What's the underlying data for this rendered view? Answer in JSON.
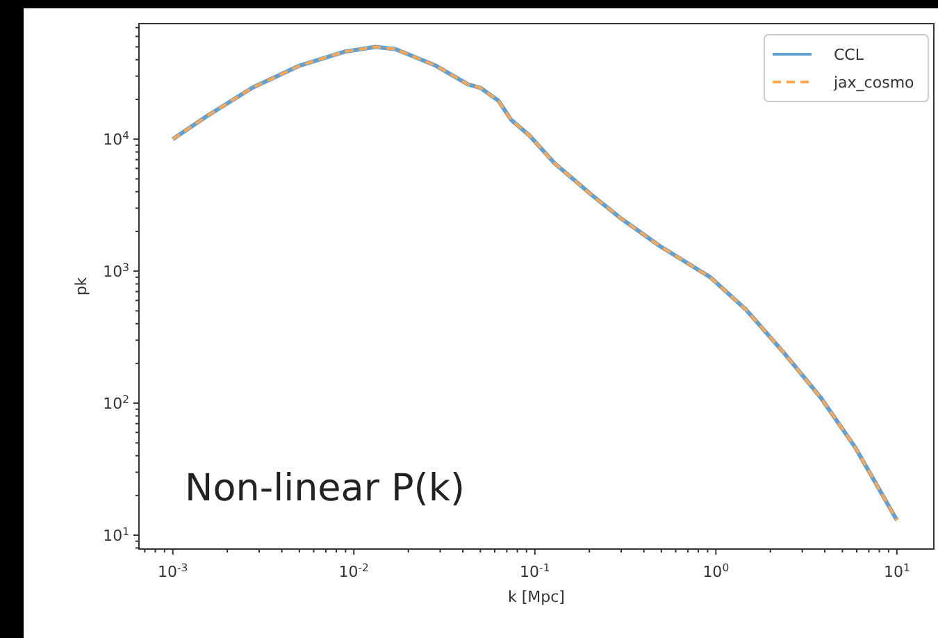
{
  "chart_data": {
    "type": "line",
    "xlabel": "k [Mpc]",
    "ylabel": "pk",
    "log": "xy",
    "x": [
      0.001,
      0.00155,
      0.00275,
      0.005,
      0.0089,
      0.0132,
      0.017,
      0.0284,
      0.0427,
      0.05,
      0.063,
      0.074,
      0.093,
      0.128,
      0.205,
      0.3,
      0.49,
      0.93,
      1.47,
      2.35,
      3.8,
      5.9,
      10
    ],
    "series": [
      {
        "name": "CCL",
        "color": "#62a0cf",
        "line_style": "solid",
        "values": [
          10000,
          15000,
          24500,
          36000,
          46000,
          50000,
          48000,
          36000,
          26000,
          24500,
          19500,
          14000,
          10700,
          6600,
          3800,
          2500,
          1550,
          900,
          510,
          245,
          110,
          46,
          13
        ]
      },
      {
        "name": "jax_cosmo",
        "color": "#ffa650",
        "line_style": "dashed",
        "values": [
          10000,
          15000,
          24500,
          36000,
          46000,
          50000,
          48000,
          36000,
          26000,
          24500,
          19500,
          14000,
          10700,
          6600,
          3800,
          2500,
          1550,
          900,
          510,
          245,
          110,
          46,
          13
        ]
      }
    ],
    "xlim": [
      0.00065,
      16
    ],
    "ylim": [
      7.85,
      75000
    ],
    "xticks": [
      {
        "value": 0.001,
        "label": "10$^{-3}$"
      },
      {
        "value": 0.01,
        "label": "10$^{-2}$"
      },
      {
        "value": 0.1,
        "label": "10$^{-1}$"
      },
      {
        "value": 1,
        "label": "10$^{0}$"
      },
      {
        "value": 10,
        "label": "10$^{1}$"
      },
      {
        "value": 0.0007,
        "label": null
      },
      {
        "value": 0.0008,
        "label": null
      },
      {
        "value": 0.0009,
        "label": null
      },
      {
        "value": 0.002,
        "label": null
      },
      {
        "value": 0.003,
        "label": null
      },
      {
        "value": 0.004,
        "label": null
      },
      {
        "value": 0.005,
        "label": null
      },
      {
        "value": 0.006,
        "label": null
      },
      {
        "value": 0.007,
        "label": null
      },
      {
        "value": 0.008,
        "label": null
      },
      {
        "value": 0.009,
        "label": null
      },
      {
        "value": 0.02,
        "label": null
      },
      {
        "value": 0.03,
        "label": null
      },
      {
        "value": 0.04,
        "label": null
      },
      {
        "value": 0.05,
        "label": null
      },
      {
        "value": 0.06,
        "label": null
      },
      {
        "value": 0.07,
        "label": null
      },
      {
        "value": 0.08,
        "label": null
      },
      {
        "value": 0.09,
        "label": null
      },
      {
        "value": 0.2,
        "label": null
      },
      {
        "value": 0.3,
        "label": null
      },
      {
        "value": 0.4,
        "label": null
      },
      {
        "value": 0.5,
        "label": null
      },
      {
        "value": 0.6,
        "label": null
      },
      {
        "value": 0.7,
        "label": null
      },
      {
        "value": 0.8,
        "label": null
      },
      {
        "value": 0.9,
        "label": null
      },
      {
        "value": 2,
        "label": null
      },
      {
        "value": 3,
        "label": null
      },
      {
        "value": 4,
        "label": null
      },
      {
        "value": 5,
        "label": null
      },
      {
        "value": 6,
        "label": null
      },
      {
        "value": 7,
        "label": null
      },
      {
        "value": 8,
        "label": null
      },
      {
        "value": 9,
        "label": null
      }
    ],
    "yticks": [
      {
        "value": 10,
        "label": "10$^{1}$"
      },
      {
        "value": 100,
        "label": "10$^{2}$"
      },
      {
        "value": 1000,
        "label": "10$^{3}$"
      },
      {
        "value": 10000,
        "label": "10$^{4}$"
      },
      {
        "value": 8,
        "label": null
      },
      {
        "value": 9,
        "label": null
      },
      {
        "value": 20,
        "label": null
      },
      {
        "value": 30,
        "label": null
      },
      {
        "value": 40,
        "label": null
      },
      {
        "value": 50,
        "label": null
      },
      {
        "value": 60,
        "label": null
      },
      {
        "value": 70,
        "label": null
      },
      {
        "value": 80,
        "label": null
      },
      {
        "value": 90,
        "label": null
      },
      {
        "value": 200,
        "label": null
      },
      {
        "value": 300,
        "label": null
      },
      {
        "value": 400,
        "label": null
      },
      {
        "value": 500,
        "label": null
      },
      {
        "value": 600,
        "label": null
      },
      {
        "value": 700,
        "label": null
      },
      {
        "value": 800,
        "label": null
      },
      {
        "value": 900,
        "label": null
      },
      {
        "value": 2000,
        "label": null
      },
      {
        "value": 3000,
        "label": null
      },
      {
        "value": 4000,
        "label": null
      },
      {
        "value": 5000,
        "label": null
      },
      {
        "value": 6000,
        "label": null
      },
      {
        "value": 7000,
        "label": null
      },
      {
        "value": 8000,
        "label": null
      },
      {
        "value": 9000,
        "label": null
      },
      {
        "value": 20000,
        "label": null
      },
      {
        "value": 30000,
        "label": null
      },
      {
        "value": 40000,
        "label": null
      },
      {
        "value": 50000,
        "label": null
      },
      {
        "value": 60000,
        "label": null
      },
      {
        "value": 70000,
        "label": null
      }
    ],
    "legend": "top right",
    "grid": false,
    "annotations": [
      "Non-linear P(k)"
    ]
  }
}
